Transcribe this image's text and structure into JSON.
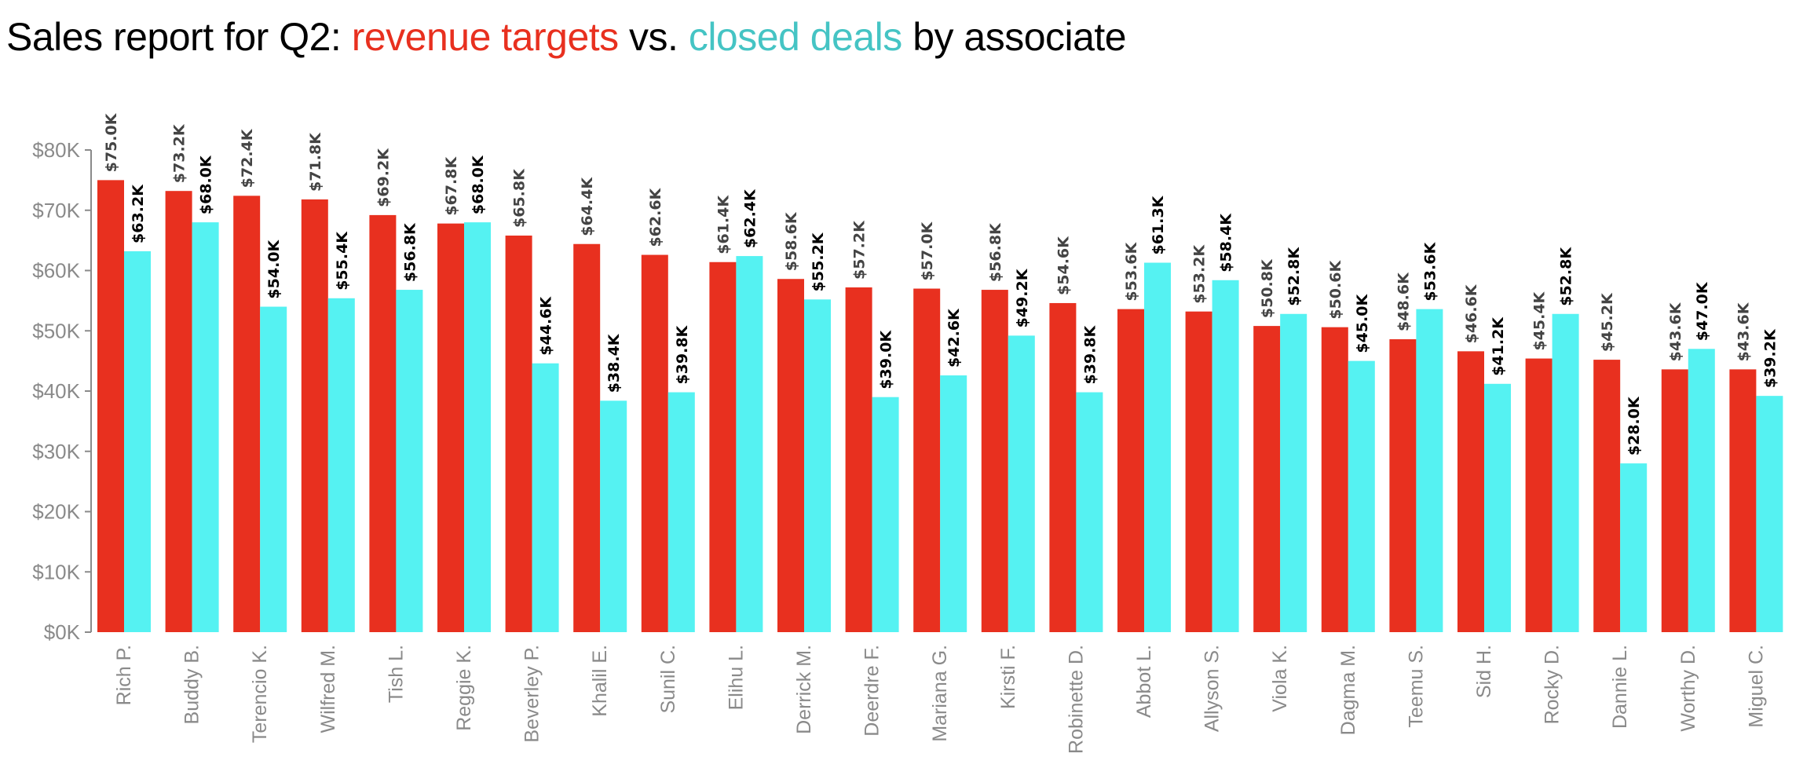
{
  "chart_data": {
    "type": "bar",
    "title": {
      "part1": "Sales report for Q2: ",
      "part2": "revenue targets",
      "part3": " vs. ",
      "part4": "closed deals",
      "part5": " by associate"
    },
    "xlabel": "",
    "ylabel": "",
    "ylim": [
      0,
      80
    ],
    "yticks": [
      "$0K",
      "$10K",
      "$20K",
      "$30K",
      "$40K",
      "$50K",
      "$60K",
      "$70K",
      "$80K"
    ],
    "grid": false,
    "legend": "none (colored words in title)",
    "categories": [
      "Rich P.",
      "Buddy B.",
      "Terencio K.",
      "Wilfred M.",
      "Tish L.",
      "Reggie K.",
      "Beverley P.",
      "Khalil E.",
      "Sunil C.",
      "Elihu L.",
      "Derrick M.",
      "Deerdre F.",
      "Mariana G.",
      "Kirsti F.",
      "Robinette D.",
      "Abbot L.",
      "Allyson S.",
      "Viola K.",
      "Dagma M.",
      "Teemu S.",
      "Sid H.",
      "Rocky D.",
      "Dannie L.",
      "Worthy D.",
      "Miguel C."
    ],
    "series": [
      {
        "name": "revenue targets",
        "color": "#E8301F",
        "values": [
          75.0,
          73.2,
          72.4,
          71.8,
          69.2,
          67.8,
          65.8,
          64.4,
          62.6,
          61.4,
          58.6,
          57.2,
          57.0,
          56.8,
          54.6,
          53.6,
          53.2,
          50.8,
          50.6,
          48.6,
          46.6,
          45.4,
          45.2,
          43.6,
          43.6
        ]
      },
      {
        "name": "closed deals",
        "color": "#55F2F2",
        "values": [
          63.2,
          68.0,
          54.0,
          55.4,
          56.8,
          68.0,
          44.6,
          38.4,
          39.8,
          62.4,
          55.2,
          39.0,
          42.6,
          49.2,
          39.8,
          61.3,
          58.4,
          52.8,
          45.0,
          53.6,
          41.2,
          52.8,
          28.0,
          47.0,
          39.2
        ]
      }
    ],
    "value_label_format": "$#.#K"
  }
}
